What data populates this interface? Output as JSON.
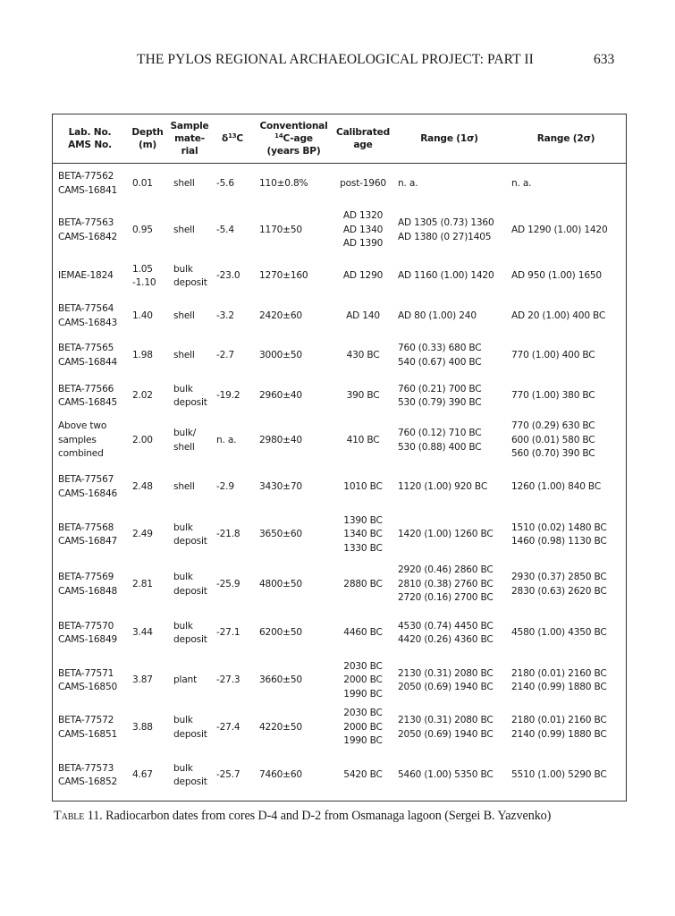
{
  "running_head": {
    "title": "THE PYLOS REGIONAL ARCHAEOLOGICAL PROJECT: PART II",
    "page_number": "633"
  },
  "table": {
    "columns": [
      [
        [
          {
            "t": "Lab. No."
          }
        ],
        [
          {
            "t": "AMS No."
          }
        ]
      ],
      [
        [
          {
            "t": "Depth"
          }
        ],
        [
          {
            "t": "(m)"
          }
        ]
      ],
      [
        [
          {
            "t": "Sample"
          }
        ],
        [
          {
            "t": "mate-"
          }
        ],
        [
          {
            "t": "rial"
          }
        ]
      ],
      [
        [
          {
            "t": "δ"
          },
          {
            "sup": "13"
          },
          {
            "t": "C"
          }
        ]
      ],
      [
        [
          {
            "t": "Conventional"
          }
        ],
        [
          {
            "sup": "14"
          },
          {
            "t": "C-age"
          }
        ],
        [
          {
            "t": "(years BP)"
          }
        ]
      ],
      [
        [
          {
            "t": "Calibrated"
          }
        ],
        [
          {
            "t": "age"
          }
        ]
      ],
      [
        [
          {
            "t": "Range (1σ)"
          }
        ]
      ],
      [
        [
          {
            "t": "Range (2σ)"
          }
        ]
      ]
    ],
    "rows": [
      [
        [
          "BETA-77562",
          "CAMS-16841"
        ],
        [
          "0.01"
        ],
        [
          "shell"
        ],
        [
          "-5.6"
        ],
        [
          "110±0.8%"
        ],
        [
          "post-1960"
        ],
        [
          "n. a."
        ],
        [
          "n. a."
        ]
      ],
      [
        [
          "BETA-77563",
          "CAMS-16842"
        ],
        [
          "0.95"
        ],
        [
          "shell"
        ],
        [
          "-5.4"
        ],
        [
          "1170±50"
        ],
        [
          "AD 1320",
          "AD 1340",
          "AD 1390"
        ],
        [
          "AD 1305 (0.73) 1360",
          "AD 1380 (0 27)1405"
        ],
        [
          "AD 1290 (1.00) 1420"
        ]
      ],
      [
        [
          "IEMAE-1824"
        ],
        [
          "1.05",
          "-1.10"
        ],
        [
          "bulk",
          "deposit"
        ],
        [
          "-23.0"
        ],
        [
          "1270±160"
        ],
        [
          "AD 1290"
        ],
        [
          "AD 1160 (1.00) 1420"
        ],
        [
          "AD 950 (1.00) 1650"
        ]
      ],
      [
        [
          "BETA-77564",
          "CAMS-16843"
        ],
        [
          "1.40"
        ],
        [
          "shell"
        ],
        [
          "-3.2"
        ],
        [
          "2420±60"
        ],
        [
          "AD 140"
        ],
        [
          "AD 80 (1.00) 240"
        ],
        [
          "AD 20 (1.00) 400 BC"
        ]
      ],
      [
        [
          "BETA-77565",
          "CAMS-16844"
        ],
        [
          "1.98"
        ],
        [
          "shell"
        ],
        [
          "-2.7"
        ],
        [
          "3000±50"
        ],
        [
          "430 BC"
        ],
        [
          "760 (0.33) 680 BC",
          "540 (0.67) 400 BC"
        ],
        [
          "770 (1.00) 400 BC"
        ]
      ],
      [
        [
          "BETA-77566",
          "CAMS-16845"
        ],
        [
          "2.02"
        ],
        [
          "bulk",
          "deposit"
        ],
        [
          "-19.2"
        ],
        [
          "2960±40"
        ],
        [
          "390 BC"
        ],
        [
          "760 (0.21) 700 BC",
          "530 (0.79) 390 BC"
        ],
        [
          "770 (1.00) 380 BC"
        ]
      ],
      [
        [
          "Above two",
          "samples",
          "combined"
        ],
        [
          "2.00"
        ],
        [
          "bulk/",
          "shell"
        ],
        [
          "n. a."
        ],
        [
          "2980±40"
        ],
        [
          "410 BC"
        ],
        [
          "760 (0.12) 710 BC",
          "530 (0.88) 400 BC"
        ],
        [
          "770 (0.29) 630 BC",
          "600 (0.01) 580 BC",
          "560 (0.70) 390 BC"
        ]
      ],
      [
        [
          "BETA-77567",
          "CAMS-16846"
        ],
        [
          "2.48"
        ],
        [
          "shell"
        ],
        [
          "-2.9"
        ],
        [
          "3430±70"
        ],
        [
          "1010 BC"
        ],
        [
          "1120 (1.00) 920 BC"
        ],
        [
          "1260 (1.00) 840 BC"
        ]
      ],
      [
        [
          "BETA-77568",
          "CAMS-16847"
        ],
        [
          "2.49"
        ],
        [
          "bulk",
          "deposit"
        ],
        [
          "-21.8"
        ],
        [
          "3650±60"
        ],
        [
          "1390 BC",
          "1340 BC",
          "1330 BC"
        ],
        [
          "1420 (1.00) 1260 BC"
        ],
        [
          "1510 (0.02) 1480 BC",
          "1460 (0.98) 1130 BC"
        ]
      ],
      [
        [
          "BETA-77569",
          "CAMS-16848"
        ],
        [
          "2.81"
        ],
        [
          "bulk",
          "deposit"
        ],
        [
          "-25.9"
        ],
        [
          "4800±50"
        ],
        [
          "2880 BC"
        ],
        [
          "2920 (0.46) 2860 BC",
          "2810 (0.38) 2760 BC",
          "2720 (0.16) 2700 BC"
        ],
        [
          "2930 (0.37) 2850 BC",
          "2830 (0.63) 2620 BC"
        ]
      ],
      [
        [
          "BETA-77570",
          "CAMS-16849"
        ],
        [
          "3.44"
        ],
        [
          "bulk",
          "deposit"
        ],
        [
          "-27.1"
        ],
        [
          "6200±50"
        ],
        [
          "4460 BC"
        ],
        [
          "4530 (0.74) 4450 BC",
          "4420 (0.26) 4360 BC"
        ],
        [
          "4580 (1.00) 4350 BC"
        ]
      ],
      [
        [
          "BETA-77571",
          "CAMS-16850"
        ],
        [
          "3.87"
        ],
        [
          "plant"
        ],
        [
          "-27.3"
        ],
        [
          "3660±50"
        ],
        [
          "2030 BC",
          "2000 BC",
          "1990 BC"
        ],
        [
          "2130 (0.31) 2080 BC",
          "2050 (0.69) 1940 BC"
        ],
        [
          "2180 (0.01) 2160 BC",
          "2140 (0.99) 1880 BC"
        ]
      ],
      [
        [
          "BETA-77572",
          "CAMS-16851"
        ],
        [
          "3.88"
        ],
        [
          "bulk",
          "deposit"
        ],
        [
          "-27.4"
        ],
        [
          "4220±50"
        ],
        [
          "2030 BC",
          "2000 BC",
          "1990 BC"
        ],
        [
          "2130 (0.31) 2080 BC",
          "2050 (0.69) 1940 BC"
        ],
        [
          "2180 (0.01) 2160 BC",
          "2140 (0.99) 1880 BC"
        ]
      ],
      [
        [
          "BETA-77573",
          "CAMS-16852"
        ],
        [
          "4.67"
        ],
        [
          "bulk",
          "deposit"
        ],
        [
          "-25.7"
        ],
        [
          "7460±60"
        ],
        [
          "5420 BC"
        ],
        [
          "5460 (1.00) 5350 BC"
        ],
        [
          "5510 (1.00) 5290 BC"
        ]
      ]
    ]
  },
  "caption": {
    "label": "Table 11.",
    "text": " Radiocarbon dates from cores D-4 and D-2 from Osmanaga lagoon (Sergei B. Yazvenko)"
  }
}
